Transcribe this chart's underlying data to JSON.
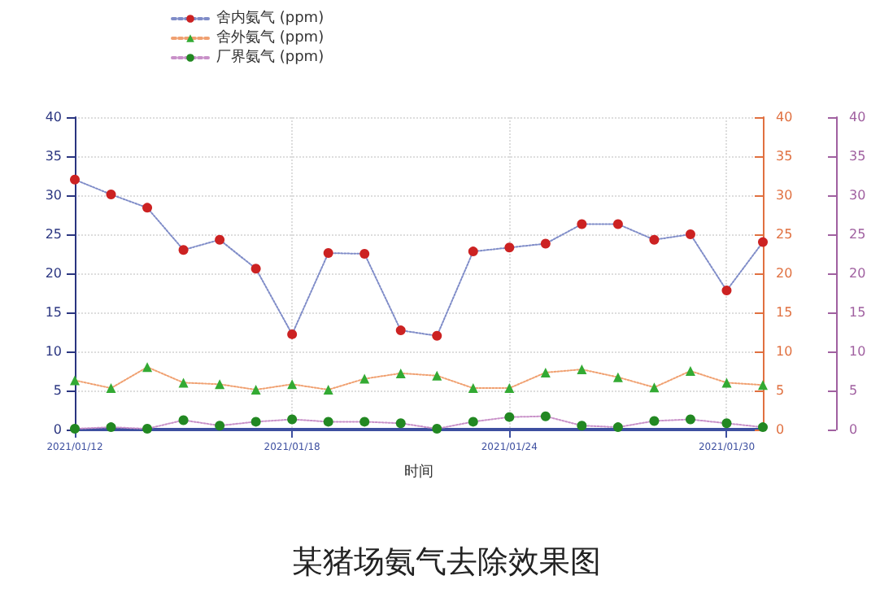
{
  "chart_data": {
    "type": "line",
    "title": "某猪场氨气去除效果图",
    "xlabel": "时间",
    "x": [
      "2021-01-12",
      "2021-01-13",
      "2021-01-14",
      "2021-01-15",
      "2021-01-16",
      "2021-01-17",
      "2021-01-18",
      "2021-01-19",
      "2021-01-20",
      "2021-01-21",
      "2021-01-22",
      "2021-01-23",
      "2021-01-24",
      "2021-01-25",
      "2021-01-26",
      "2021-01-27",
      "2021-01-28",
      "2021-01-29",
      "2021-01-30",
      "2021-01-31"
    ],
    "series": [
      {
        "name": "舍内氨气 (ppm)",
        "color": "#cc2222",
        "marker": "circle",
        "values": [
          32,
          30.1,
          28.4,
          23,
          24.3,
          20.6,
          12.2,
          22.6,
          22.5,
          12.7,
          12,
          22.8,
          23.3,
          23.8,
          26.3,
          26.3,
          24.3,
          25,
          17.8,
          24
        ]
      },
      {
        "name": "舍外氨气 (ppm)",
        "color": "#33aa33",
        "marker": "triangle",
        "axis": "y2",
        "values": [
          6.3,
          5.3,
          8.0,
          6.0,
          5.8,
          5.1,
          5.8,
          5.1,
          6.5,
          7.2,
          6.9,
          5.3,
          5.3,
          7.3,
          7.7,
          6.7,
          5.4,
          7.5,
          6.0,
          5.7
        ]
      },
      {
        "name": "厂界氨气 (ppm)",
        "color": "#228822",
        "marker": "circle",
        "axis": "y3",
        "values": [
          0.1,
          0.3,
          0.1,
          1.2,
          0.5,
          1.0,
          1.3,
          1.0,
          1.0,
          0.8,
          0.1,
          1.0,
          1.6,
          1.7,
          0.5,
          0.3,
          1.1,
          1.3,
          0.8,
          0.3
        ]
      }
    ],
    "xlim": [
      "2021-01-12",
      "2021-01-31"
    ],
    "xticks": [
      {
        "value": "2021-01-12",
        "label": "2021/01/12"
      },
      {
        "value": "2021-01-18",
        "label": "2021/01/18"
      },
      {
        "value": "2021-01-24",
        "label": "2021/01/24"
      },
      {
        "value": "2021-01-30",
        "label": "2021/01/30"
      }
    ],
    "ylim": [
      0,
      40
    ],
    "yticks": [
      0,
      5,
      10,
      15,
      20,
      25,
      30,
      35,
      40
    ],
    "y2lim": [
      0,
      40
    ],
    "y2ticks": [
      0,
      5,
      10,
      15,
      20,
      25,
      30,
      35,
      40
    ],
    "y3lim": [
      0,
      40
    ],
    "y3ticks": [
      0,
      5,
      10,
      15,
      20,
      25,
      30,
      35,
      40
    ],
    "grid": true,
    "legend": "top",
    "line_style": "dotted"
  }
}
